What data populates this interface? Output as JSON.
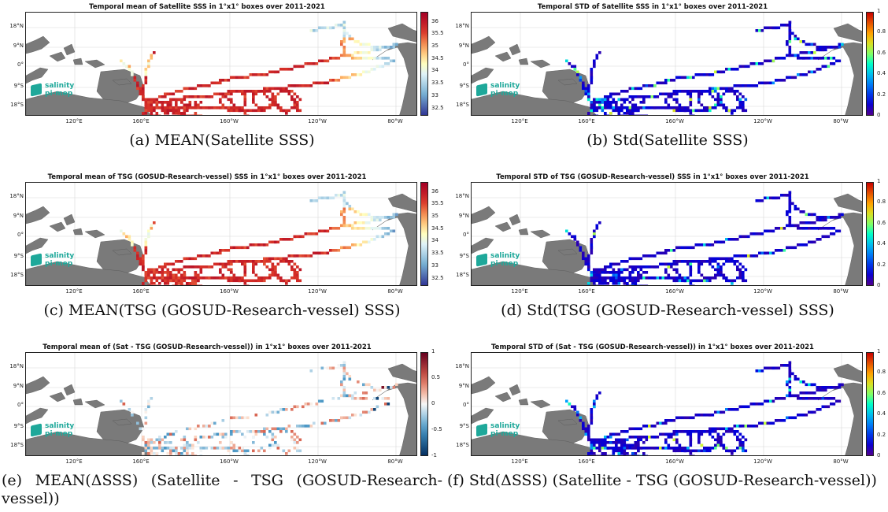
{
  "x_ticks": [
    "120°E",
    "160°E",
    "160°W",
    "120°W",
    "80°W"
  ],
  "y_ticks": [
    "18°N",
    "9°N",
    "0°",
    "9°S",
    "18°S"
  ],
  "logo": {
    "line1": "salinity",
    "line2": "pi-mep"
  },
  "panels": [
    {
      "title": "Temporal mean of Satellite SSS in 1°x1° boxes over 2011-2021",
      "caption": "(a) MEAN(Satellite SSS)",
      "colormap": "RdYlBu_r",
      "colorbar_ticks": [
        "36",
        "35.5",
        "35",
        "34.5",
        "34",
        "33.5",
        "33",
        "32.5"
      ],
      "colorbar_range": [
        32.2,
        36.4
      ]
    },
    {
      "title": "Temporal STD of Satellite SSS in 1°x1° boxes over 2011-2021",
      "caption": "(b) Std(Satellite SSS)",
      "colormap": "jet",
      "colorbar_ticks": [
        "1",
        "0.8",
        "0.6",
        "0.4",
        "0.2",
        "0"
      ],
      "colorbar_range": [
        0,
        1
      ]
    },
    {
      "title": "Temporal mean of TSG (GOSUD-Research-vessel) SSS in 1°x1° boxes over 2011-2021",
      "caption": "(c) MEAN(TSG (GOSUD-Research-vessel) SSS)",
      "colormap": "RdYlBu_r",
      "colorbar_ticks": [
        "36",
        "35.5",
        "35",
        "34.5",
        "34",
        "33.5",
        "33",
        "32.5"
      ],
      "colorbar_range": [
        32.2,
        36.4
      ]
    },
    {
      "title": "Temporal STD of TSG (GOSUD-Research-vessel) SSS in 1°x1° boxes over 2011-2021",
      "caption": "(d) Std(TSG (GOSUD-Research-vessel) SSS)",
      "colormap": "jet",
      "colorbar_ticks": [
        "1",
        "0.8",
        "0.6",
        "0.4",
        "0.2",
        "0"
      ],
      "colorbar_range": [
        0,
        1
      ]
    },
    {
      "title": "Temporal mean of (Sat - TSG (GOSUD-Research-vessel)) in 1°x1° boxes over 2011-2021",
      "caption": "(e) MEAN(ΔSSS) (Satellite - TSG (GOSUD-Research-vessel))",
      "colormap": "RdBu_r",
      "colorbar_ticks": [
        "1",
        "0.5",
        "0",
        "-0.5",
        "-1"
      ],
      "colorbar_range": [
        -1,
        1
      ]
    },
    {
      "title": "Temporal STD of (Sat - TSG (GOSUD-Research-vessel)) in 1°x1° boxes over 2011-2021",
      "caption": "(f) Std(ΔSSS) (Satellite - TSG (GOSUD-Research-vessel))",
      "colormap": "jet",
      "colorbar_ticks": [
        "1",
        "0.8",
        "0.6",
        "0.4",
        "0.2",
        "0"
      ],
      "colorbar_range": [
        0,
        1
      ]
    }
  ]
}
